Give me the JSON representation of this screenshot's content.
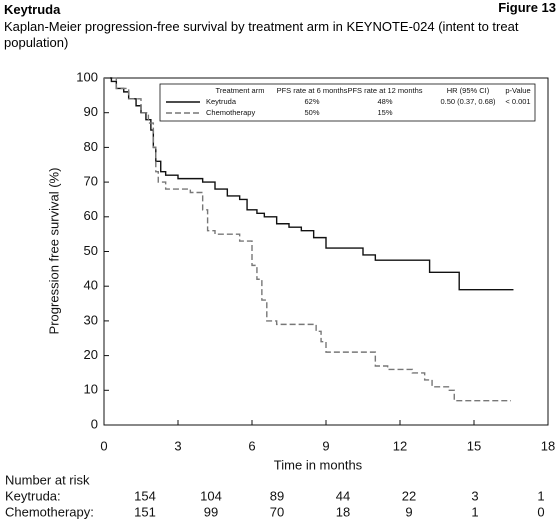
{
  "chart_data": {
    "type": "step",
    "title": "Keytruda",
    "figure_label": "Figure 13",
    "subtitle": "Kaplan-Meier progression-free survival by treatment arm in KEYNOTE-024 (intent to treat population)",
    "xlabel": "Time in months",
    "ylabel": "Progression free survival (%)",
    "xlim": [
      0,
      18
    ],
    "xticks": [
      0,
      3,
      6,
      9,
      12,
      15,
      18
    ],
    "ylim": [
      0,
      100
    ],
    "yticks": [
      0,
      10,
      20,
      30,
      40,
      50,
      60,
      70,
      80,
      90,
      100
    ],
    "series": [
      {
        "name": "Keytruda",
        "color": "#111111",
        "dash": false,
        "x": [
          0,
          0.3,
          0.5,
          0.8,
          1.0,
          1.3,
          1.5,
          1.7,
          1.9,
          2.0,
          2.1,
          2.3,
          2.5,
          3.0,
          4.0,
          4.5,
          5.0,
          5.5,
          5.8,
          6.2,
          6.5,
          7.0,
          7.5,
          8.0,
          8.5,
          9.0,
          10.5,
          11.0,
          13.2,
          14.4,
          16.6
        ],
        "values": [
          100,
          99,
          97,
          96,
          94,
          92,
          90,
          88,
          85,
          80,
          76,
          73,
          72,
          71,
          70,
          68,
          66,
          65,
          62,
          61,
          60,
          58,
          57,
          56,
          54,
          51,
          49,
          47.5,
          44,
          39,
          39
        ]
      },
      {
        "name": "Chemotherapy",
        "color": "#777777",
        "dash": true,
        "x": [
          0,
          0.5,
          1.0,
          1.5,
          1.8,
          2.0,
          2.1,
          2.2,
          2.5,
          3.5,
          4.0,
          4.2,
          4.5,
          5.5,
          6.0,
          6.2,
          6.4,
          6.6,
          7.0,
          8.6,
          8.8,
          9.0,
          10.0,
          11.0,
          11.5,
          12.5,
          13.0,
          13.3,
          14.0,
          14.2,
          16.5
        ],
        "values": [
          100,
          97,
          94,
          90,
          87,
          80,
          73,
          70,
          68,
          67,
          62,
          56,
          55,
          53,
          46,
          42,
          36,
          30,
          29,
          27,
          24,
          21,
          21,
          17,
          16,
          15,
          13,
          11,
          10,
          7,
          7
        ]
      }
    ],
    "legend_table": {
      "columns": [
        "Treatment arm",
        "PFS rate at 6 months",
        "PFS rate at 12 months",
        "HR (95% CI)",
        "p-Value"
      ],
      "rows": [
        [
          "62%",
          "48%",
          "0.50 (0.37, 0.68)",
          "< 0.001"
        ],
        [
          "50%",
          "15%"
        ]
      ]
    },
    "risk_table": {
      "title": "Number at risk",
      "rows": [
        {
          "label": "Keytruda:",
          "values": [
            154,
            104,
            89,
            44,
            22,
            3,
            1
          ]
        },
        {
          "label": "Chemotherapy:",
          "values": [
            151,
            99,
            70,
            18,
            9,
            1,
            0
          ]
        }
      ]
    }
  }
}
